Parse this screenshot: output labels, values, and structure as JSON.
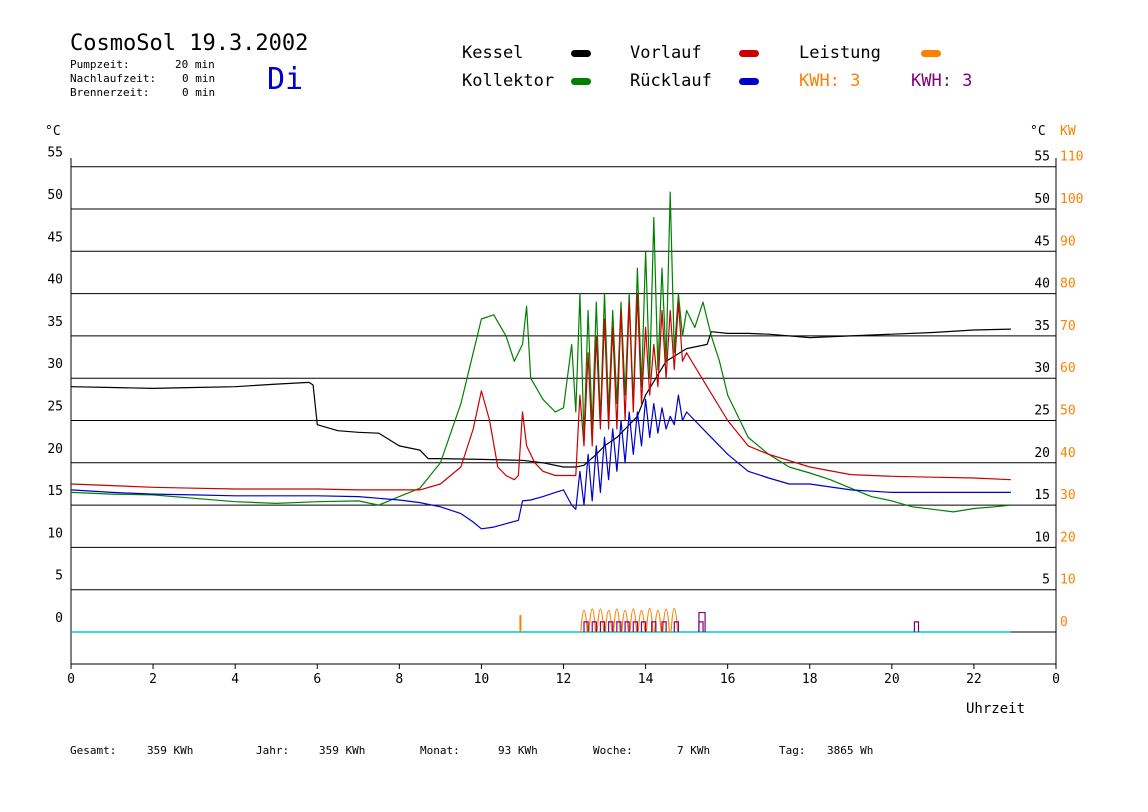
{
  "header": {
    "title": "CosmoSol 19.3.2002",
    "day": "Di",
    "pumpzeit_label": "Pumpzeit:",
    "pumpzeit_value": "20 min",
    "nachlaufzeit_label": "Nachlaufzeit:",
    "nachlaufzeit_value": "0 min",
    "brennerzeit_label": "Brennerzeit:",
    "brennerzeit_value": "0 min"
  },
  "legend": {
    "kessel": "Kessel",
    "kollektor": "Kollektor",
    "vorlauf": "Vorlauf",
    "ruecklauf": "Rücklauf",
    "leistung": "Leistung",
    "kwh_orange": "KWH: 3",
    "kwh_purple": "KWH: 3"
  },
  "colors": {
    "kessel": "#000000",
    "kollektor": "#008000",
    "vorlauf": "#cc0000",
    "ruecklauf": "#0000cc",
    "leistung": "#ff8000",
    "kwh_purple": "#800080",
    "baseline": "#00cccc"
  },
  "axes": {
    "left_unit": "°C",
    "right_unit_c": "°C",
    "right_unit_kw": "KW",
    "x_label": "Uhrzeit"
  },
  "footer": {
    "gesamt_label": "Gesamt:",
    "gesamt_value": "359 KWh",
    "jahr_label": "Jahr:",
    "jahr_value": "359 KWh",
    "monat_label": "Monat:",
    "monat_value": "93 KWh",
    "woche_label": "Woche:",
    "woche_value": "7 KWh",
    "tag_label": "Tag:",
    "tag_value": "3865 Wh"
  },
  "chart_data": {
    "type": "line",
    "xlabel": "Uhrzeit",
    "ylabel": "°C",
    "xlim": [
      0,
      24
    ],
    "ylim": [
      -4,
      57
    ],
    "grid": true,
    "x_ticks": [
      "0",
      "2",
      "4",
      "6",
      "8",
      "10",
      "12",
      "14",
      "16",
      "18",
      "20",
      "22",
      "0"
    ],
    "y_ticks_left": [
      "0",
      "5",
      "10",
      "15",
      "20",
      "25",
      "30",
      "35",
      "40",
      "45",
      "50",
      "55"
    ],
    "y_ticks_right_c": [
      "5",
      "10",
      "15",
      "20",
      "25",
      "30",
      "35",
      "40",
      "45",
      "50",
      "55"
    ],
    "y_ticks_right_kw": [
      "0",
      "10",
      "20",
      "30",
      "40",
      "50",
      "60",
      "70",
      "80",
      "90",
      "100",
      "110"
    ],
    "series": [
      {
        "name": "Kessel",
        "color": "#000000",
        "x": [
          0,
          1,
          2,
          3,
          4,
          5,
          5.8,
          5.9,
          6,
          6.5,
          7,
          7.5,
          8,
          8.5,
          8.7,
          9,
          10,
          11,
          11.5,
          12,
          12.3,
          12.5,
          12.8,
          13,
          13.3,
          13.5,
          13.8,
          14,
          14.5,
          15,
          15.5,
          15.6,
          16,
          16.5,
          17,
          18,
          19,
          20,
          21,
          22,
          22.9
        ],
        "y": [
          29,
          28.9,
          28.8,
          28.9,
          29,
          29.3,
          29.5,
          29.2,
          24.5,
          23.8,
          23.6,
          23.5,
          22,
          21.5,
          20.5,
          20.5,
          20.4,
          20.3,
          20,
          19.5,
          19.5,
          19.7,
          21,
          22,
          23,
          24,
          25.5,
          28,
          32,
          33.5,
          34,
          35.5,
          35.3,
          35.3,
          35.2,
          34.8,
          35,
          35.2,
          35.4,
          35.7,
          35.8
        ]
      },
      {
        "name": "Kollektor",
        "color": "#008000",
        "x": [
          0,
          1,
          2,
          3,
          4,
          5,
          6,
          7,
          7.5,
          8,
          8.5,
          9,
          9.5,
          9.8,
          10,
          10.3,
          10.6,
          10.8,
          11,
          11.1,
          11.2,
          11.5,
          11.8,
          12,
          12.2,
          12.3,
          12.4,
          12.5,
          12.6,
          12.7,
          12.8,
          12.9,
          13,
          13.1,
          13.2,
          13.3,
          13.4,
          13.5,
          13.6,
          13.7,
          13.8,
          13.9,
          14,
          14.1,
          14.2,
          14.3,
          14.4,
          14.5,
          14.6,
          14.7,
          14.8,
          14.9,
          15,
          15.2,
          15.4,
          15.6,
          15.8,
          16,
          16.5,
          17,
          17.5,
          18,
          18.5,
          19,
          19.5,
          20,
          20.5,
          21,
          21.5,
          22,
          22.5,
          22.9
        ],
        "y": [
          16.5,
          16.3,
          16.2,
          15.8,
          15.4,
          15.2,
          15.4,
          15.5,
          15,
          16,
          17,
          20,
          27,
          33,
          37,
          37.5,
          35,
          32,
          34,
          38.5,
          30,
          27.5,
          26,
          26.5,
          34,
          26,
          40,
          23,
          38,
          24,
          39,
          25,
          40,
          26,
          38,
          27,
          39,
          28,
          40,
          27,
          43,
          29,
          45,
          30,
          49,
          31,
          43,
          32,
          52,
          33,
          40,
          35,
          38,
          36,
          39,
          35,
          32,
          28,
          23,
          21,
          19.5,
          18.8,
          18,
          17,
          16,
          15.5,
          14.8,
          14.5,
          14.2,
          14.6,
          14.8,
          15
        ]
      },
      {
        "name": "Vorlauf",
        "color": "#cc0000",
        "x": [
          0,
          1,
          2,
          3,
          4,
          5,
          6,
          7,
          8,
          8.5,
          9,
          9.5,
          9.8,
          10,
          10.2,
          10.4,
          10.6,
          10.8,
          10.9,
          11,
          11.1,
          11.3,
          11.5,
          11.8,
          12,
          12.3,
          12.4,
          12.5,
          12.6,
          12.7,
          12.8,
          12.9,
          13,
          13.1,
          13.2,
          13.3,
          13.4,
          13.5,
          13.6,
          13.7,
          13.8,
          13.9,
          14,
          14.1,
          14.2,
          14.3,
          14.4,
          14.5,
          14.6,
          14.7,
          14.8,
          14.9,
          15,
          15.5,
          16,
          16.5,
          17,
          18,
          19,
          20,
          21,
          22,
          22.9
        ],
        "y": [
          17.5,
          17.3,
          17.1,
          17,
          16.9,
          16.9,
          16.9,
          16.8,
          16.8,
          16.8,
          17.5,
          19.5,
          24,
          28.5,
          25,
          19.5,
          18.5,
          18,
          18.5,
          26,
          22,
          20,
          19,
          18.5,
          18.5,
          18.5,
          28,
          22,
          33,
          22,
          35,
          24,
          37,
          24,
          36,
          24,
          38,
          25,
          39,
          26,
          40,
          27,
          36,
          28,
          34,
          29,
          38,
          30,
          38,
          31,
          39,
          32,
          33,
          29,
          25,
          22,
          21,
          19.5,
          18.6,
          18.4,
          18.3,
          18.2,
          18
        ]
      },
      {
        "name": "Rücklauf",
        "color": "#0000cc",
        "x": [
          0,
          1,
          2,
          3,
          4,
          5,
          6,
          7,
          8,
          8.5,
          9,
          9.5,
          9.8,
          10,
          10.3,
          10.6,
          10.9,
          11,
          11.2,
          11.5,
          11.8,
          12,
          12.2,
          12.3,
          12.4,
          12.5,
          12.6,
          12.7,
          12.8,
          12.9,
          13,
          13.1,
          13.2,
          13.3,
          13.4,
          13.5,
          13.6,
          13.7,
          13.8,
          13.9,
          14,
          14.1,
          14.2,
          14.3,
          14.4,
          14.5,
          14.6,
          14.7,
          14.8,
          14.9,
          15,
          15.5,
          16,
          16.5,
          17,
          17.5,
          18,
          19,
          20,
          21,
          22,
          22.9
        ],
        "y": [
          16.8,
          16.5,
          16.3,
          16.2,
          16.1,
          16.1,
          16.1,
          16,
          15.6,
          15.3,
          14.8,
          14,
          13,
          12.2,
          12.4,
          12.8,
          13.2,
          15.5,
          15.6,
          16,
          16.5,
          16.8,
          15,
          14.5,
          19,
          15,
          21,
          15.5,
          22,
          16.5,
          23,
          18,
          24,
          19,
          25,
          20,
          26,
          21,
          26,
          22,
          27.5,
          23,
          27,
          23.5,
          26.5,
          24,
          25.5,
          24.5,
          28,
          25,
          26,
          23.5,
          21,
          19,
          18.2,
          17.5,
          17.5,
          16.8,
          16.5,
          16.5,
          16.5,
          16.5
        ]
      }
    ]
  }
}
